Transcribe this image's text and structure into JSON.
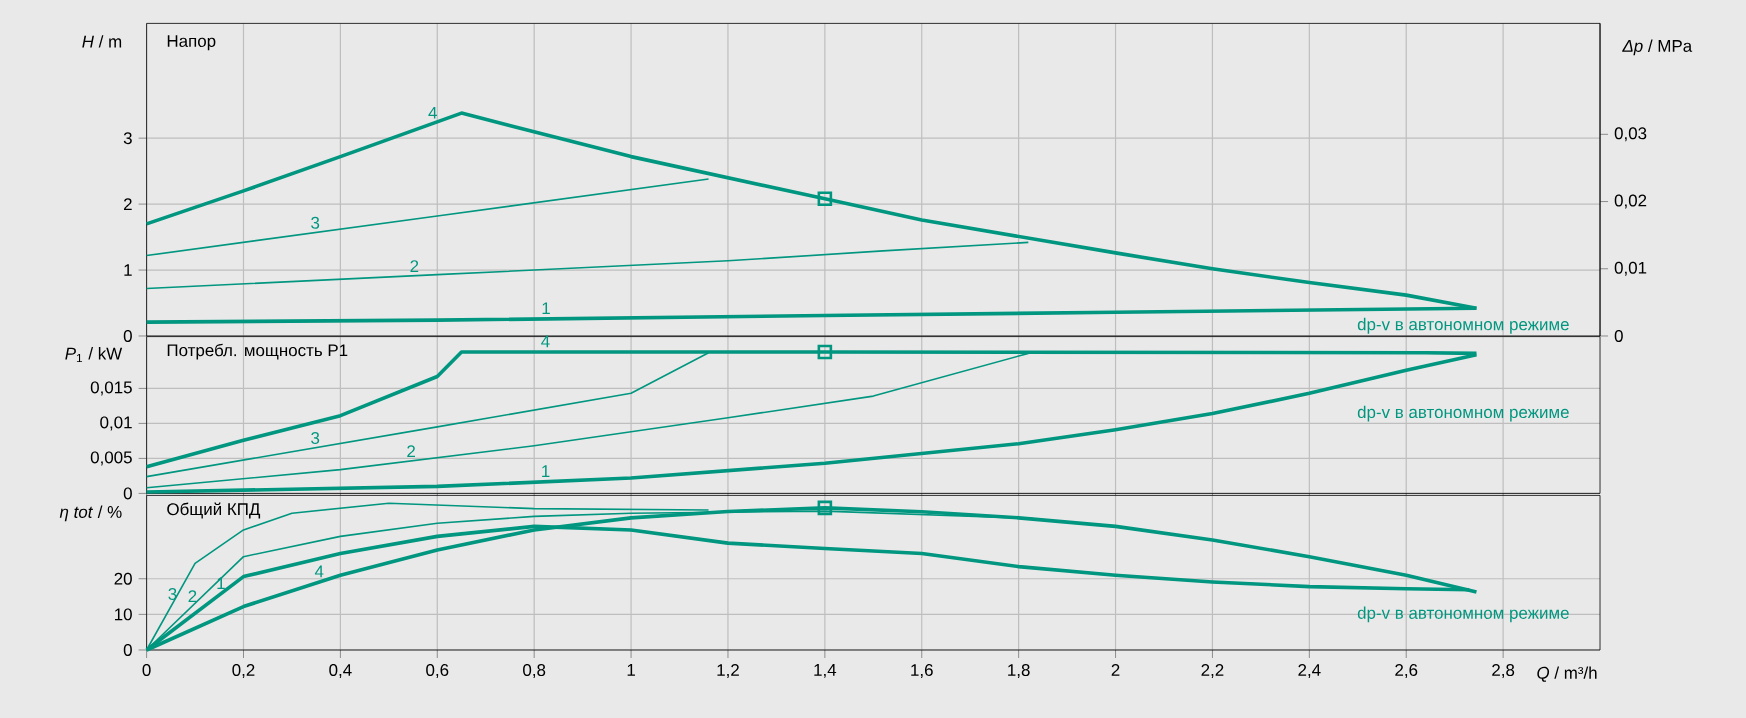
{
  "chart_data": [
    {
      "type": "line",
      "title": "Напор",
      "ylabel": "*H* / m",
      "y2label": "*Δp* / MPa",
      "grid": true,
      "tick_labels": "y",
      "xlim": [
        0,
        3.0
      ],
      "xticks": [
        {
          "value": 0,
          "label": null
        },
        {
          "value": 0.2,
          "label": null
        },
        {
          "value": 0.4,
          "label": null
        },
        {
          "value": 0.6,
          "label": null
        },
        {
          "value": 0.8,
          "label": null
        },
        {
          "value": 1,
          "label": null
        },
        {
          "value": 1.2,
          "label": null
        },
        {
          "value": 1.4,
          "label": null
        },
        {
          "value": 1.6,
          "label": null
        },
        {
          "value": 1.8,
          "label": null
        },
        {
          "value": 2,
          "label": null
        },
        {
          "value": 2.2,
          "label": null
        },
        {
          "value": 2.4,
          "label": null
        },
        {
          "value": 2.6,
          "label": null
        },
        {
          "value": 2.8,
          "label": null
        }
      ],
      "ylim": [
        0,
        4.74
      ],
      "yticks": [
        0,
        1,
        2,
        3
      ],
      "y2lim": [
        0,
        0.0465
      ],
      "y2ticks": [
        0,
        {
          "value": 0.01,
          "label": "0,01"
        },
        {
          "value": 0.02,
          "label": "0,02"
        },
        {
          "value": 0.03,
          "label": "0,03"
        }
      ],
      "annotations": [
        "dp-v в автономном режиме"
      ],
      "series": [
        {
          "name": "1",
          "color": "#00967f",
          "x": [
            0,
            0.6,
            1.4,
            2.0,
            2.745
          ],
          "values": [
            0.21,
            0.24,
            0.31,
            0.36,
            0.42
          ]
        },
        {
          "name": "2",
          "color": "#00967f",
          "x": [
            0,
            0.6,
            1.2,
            1.52,
            1.82
          ],
          "values": [
            0.72,
            0.93,
            1.14,
            1.29,
            1.42
          ]
        },
        {
          "name": "3",
          "color": "#00967f",
          "x": [
            0,
            0.6,
            1.16
          ],
          "values": [
            1.22,
            1.82,
            2.38
          ]
        },
        {
          "name": "4",
          "color": "#00967f",
          "x": [
            0,
            0.2,
            0.4,
            0.65,
            1.0,
            1.4,
            1.6,
            2.0,
            2.2,
            2.4,
            2.6,
            2.745
          ],
          "values": [
            1.7,
            2.2,
            2.72,
            3.38,
            2.72,
            2.08,
            1.76,
            1.26,
            1.02,
            0.81,
            0.62,
            0.42
          ]
        },
        {
          "type": "scatter",
          "marker": "square",
          "color": "#00967f",
          "x": [
            1.4
          ],
          "values": [
            2.08
          ]
        }
      ]
    },
    {
      "type": "line",
      "title": "Потребл. мощность P1",
      "ylabel": "*P*$_{1}$ / kW",
      "grid": true,
      "tick_labels": "y",
      "xlim": [
        0,
        3.0
      ],
      "xticks": [
        {
          "value": 0,
          "label": null
        },
        {
          "value": 0.2,
          "label": null
        },
        {
          "value": 0.4,
          "label": null
        },
        {
          "value": 0.6,
          "label": null
        },
        {
          "value": 0.8,
          "label": null
        },
        {
          "value": 1,
          "label": null
        },
        {
          "value": 1.2,
          "label": null
        },
        {
          "value": 1.4,
          "label": null
        },
        {
          "value": 1.6,
          "label": null
        },
        {
          "value": 1.8,
          "label": null
        },
        {
          "value": 2,
          "label": null
        },
        {
          "value": 2.2,
          "label": null
        },
        {
          "value": 2.4,
          "label": null
        },
        {
          "value": 2.6,
          "label": null
        },
        {
          "value": 2.8,
          "label": null
        }
      ],
      "ylim": [
        0,
        0.0224
      ],
      "yticks": [
        0,
        {
          "value": 0.005,
          "label": "0,005"
        },
        {
          "value": 0.01,
          "label": "0,01"
        },
        {
          "value": 0.015,
          "label": "0,015"
        }
      ],
      "annotations": [
        "dp-v в автономном режиме"
      ],
      "series": [
        {
          "name": "1",
          "color": "#00967f",
          "x": [
            0,
            0.6,
            1.0,
            1.4,
            1.8,
            2.0,
            2.2,
            2.4,
            2.6,
            2.745
          ],
          "values": [
            0.0002,
            0.001,
            0.0022,
            0.0043,
            0.0071,
            0.0091,
            0.0114,
            0.0143,
            0.0176,
            0.0198
          ]
        },
        {
          "name": "2",
          "color": "#00967f",
          "x": [
            0,
            0.4,
            0.8,
            1.2,
            1.5,
            1.82
          ],
          "values": [
            0.0008,
            0.0034,
            0.0068,
            0.0108,
            0.0139,
            0.02
          ]
        },
        {
          "name": "3",
          "color": "#00967f",
          "x": [
            0,
            0.6,
            1.0,
            1.16
          ],
          "values": [
            0.0024,
            0.0095,
            0.0143,
            0.0201
          ]
        },
        {
          "name": "4",
          "color": "#00967f",
          "x": [
            0,
            0.2,
            0.4,
            0.6,
            0.65,
            1.4,
            2.64,
            2.745
          ],
          "values": [
            0.0038,
            0.0076,
            0.0111,
            0.0167,
            0.0202,
            0.0202,
            0.0201,
            0.02
          ]
        },
        {
          "type": "scatter",
          "marker": "square",
          "color": "#00967f",
          "x": [
            1.4
          ],
          "values": [
            0.0202
          ]
        }
      ]
    },
    {
      "type": "line",
      "title": "Общий КПД",
      "ylabel": "*η tot* / %",
      "xlabel": "*Q* / m³/h",
      "grid": true,
      "xlim": [
        0,
        3.0
      ],
      "xticks": [
        0,
        {
          "value": 0.2,
          "label": "0,2"
        },
        {
          "value": 0.4,
          "label": "0,4"
        },
        {
          "value": 0.6,
          "label": "0,6"
        },
        {
          "value": 0.8,
          "label": "0,8"
        },
        1,
        {
          "value": 1.2,
          "label": "1,2"
        },
        {
          "value": 1.4,
          "label": "1,4"
        },
        {
          "value": 1.6,
          "label": "1,6"
        },
        {
          "value": 1.8,
          "label": "1,8"
        },
        2,
        {
          "value": 2.2,
          "label": "2,2"
        },
        {
          "value": 2.4,
          "label": "2,4"
        },
        {
          "value": 2.6,
          "label": "2,6"
        },
        {
          "value": 2.8,
          "label": "2,8"
        }
      ],
      "ylim": [
        0,
        43.4
      ],
      "yticks": [
        0,
        10,
        20
      ],
      "annotations": [
        "dp-v в автономном режиме"
      ],
      "series": [
        {
          "name": "1",
          "color": "#00967f",
          "x": [
            0,
            0.2,
            0.4,
            0.6,
            0.8,
            1.0,
            1.2,
            1.4,
            1.6,
            1.8,
            2.0,
            2.2,
            2.4,
            2.6,
            2.73
          ],
          "values": [
            0,
            20.6,
            27.1,
            31.9,
            34.7,
            33.7,
            30,
            28.5,
            27.1,
            23.4,
            21,
            19.1,
            17.8,
            17.2,
            16.9
          ]
        },
        {
          "name": "2",
          "color": "#00967f",
          "x": [
            0,
            0.2,
            0.4,
            0.6,
            0.8,
            1.0,
            1.4,
            1.83
          ],
          "values": [
            0,
            26.2,
            31.9,
            35.6,
            37.5,
            38.4,
            39,
            36.9
          ]
        },
        {
          "name": "3",
          "color": "#00967f",
          "x": [
            0,
            0.1,
            0.2,
            0.3,
            0.5,
            0.8,
            1.16
          ],
          "values": [
            0,
            24.3,
            33.7,
            38.4,
            41.2,
            39.7,
            39.3
          ]
        },
        {
          "name": "4",
          "color": "#00967f",
          "x": [
            0,
            0.2,
            0.4,
            0.6,
            0.8,
            1.0,
            1.2,
            1.4,
            1.6,
            1.8,
            2.0,
            2.2,
            2.4,
            2.6,
            2.745
          ],
          "values": [
            0,
            12.2,
            21,
            28.1,
            33.7,
            37.1,
            38.9,
            39.9,
            38.8,
            37.1,
            34.7,
            30.9,
            26.2,
            21,
            16.3
          ]
        },
        {
          "type": "scatter",
          "marker": "square",
          "color": "#00967f",
          "x": [
            1.4
          ],
          "values": [
            39.9
          ]
        }
      ]
    }
  ]
}
